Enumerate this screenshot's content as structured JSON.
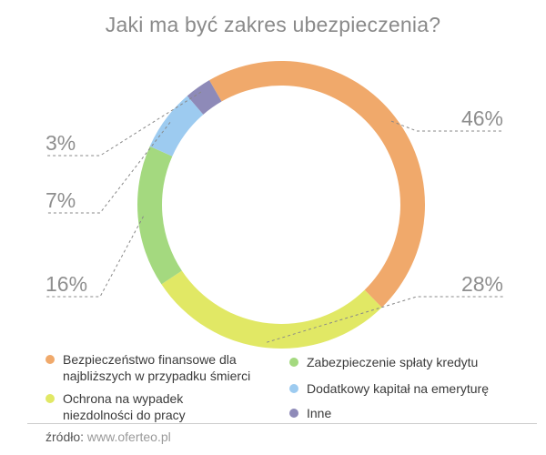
{
  "title": "Jaki ma być zakres ubezpieczenia?",
  "chart_data": {
    "type": "pie",
    "variant": "donut",
    "title": "Jaki ma być zakres ubezpieczenia?",
    "series": [
      {
        "name": "Bezpieczeństwo finansowe dla najbliższych w przypadku śmierci",
        "value": 46,
        "label": "46%",
        "color": "#f0a96b"
      },
      {
        "name": "Ochrona na wypadek niezdolności do pracy",
        "value": 28,
        "label": "28%",
        "color": "#e1e865"
      },
      {
        "name": "Zabezpieczenie spłaty kredytu",
        "value": 16,
        "label": "16%",
        "color": "#a4d97f"
      },
      {
        "name": "Dodatkowy kapitał na emeryturę",
        "value": 7,
        "label": "7%",
        "color": "#9dcbf0"
      },
      {
        "name": "Inne",
        "value": 3,
        "label": "3%",
        "color": "#8e8ab8"
      }
    ],
    "legend_position": "bottom"
  },
  "legend": [
    {
      "label": "Bezpieczeństwo finansowe dla najbliższych w przypadku śmierci",
      "color": "#f0a96b"
    },
    {
      "label": "Zabezpieczenie spłaty kredytu",
      "color": "#a4d97f"
    },
    {
      "label": "Ochrona na wypadek niezdolności do pracy",
      "color": "#e1e865"
    },
    {
      "label": "Dodatkowy kapitał na emeryturę",
      "color": "#9dcbf0"
    },
    {
      "label": "Inne",
      "color": "#8e8ab8"
    }
  ],
  "source": {
    "prefix": "źródło:",
    "url": "www.oferteo.pl"
  }
}
